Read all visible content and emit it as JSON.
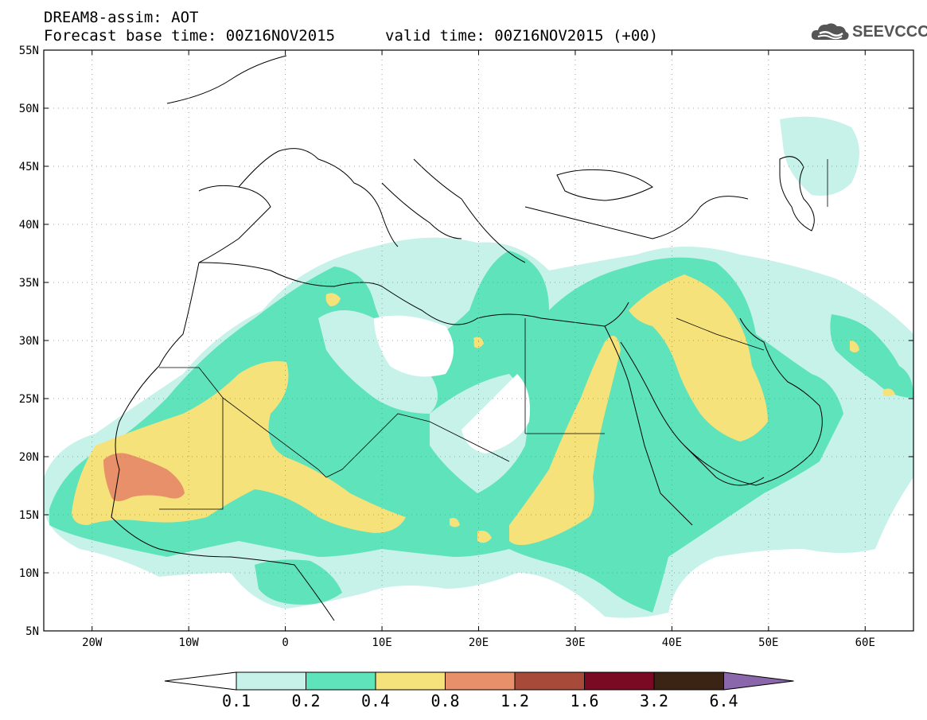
{
  "header": {
    "title": "DREAM8-assim: AOT",
    "base_time": "Forecast base time: 00Z16NOV2015",
    "valid_time": "valid time: 00Z16NOV2015 (+00)",
    "logo_text": "SEEVCCC",
    "logo_icon": "cloud-icon"
  },
  "map": {
    "lon_range": [
      -25,
      65
    ],
    "lat_range": [
      5,
      55
    ],
    "lat_labels": [
      "55N",
      "50N",
      "45N",
      "40N",
      "35N",
      "30N",
      "25N",
      "20N",
      "15N",
      "10N",
      "5N"
    ],
    "lon_labels": [
      "20W",
      "10W",
      "0",
      "10E",
      "20E",
      "30E",
      "40E",
      "50E",
      "60E"
    ],
    "field": "Aerosol Optical Thickness"
  },
  "colorbar": {
    "labels": [
      "0.1",
      "0.2",
      "0.4",
      "0.8",
      "1.2",
      "1.6",
      "3.2",
      "6.4"
    ],
    "colors": [
      "#ffffff",
      "#c6f2ea",
      "#5ee3bb",
      "#f6e27a",
      "#e8906a",
      "#a84a3a",
      "#7a0a24",
      "#3b2414",
      "#8a66aa"
    ]
  }
}
